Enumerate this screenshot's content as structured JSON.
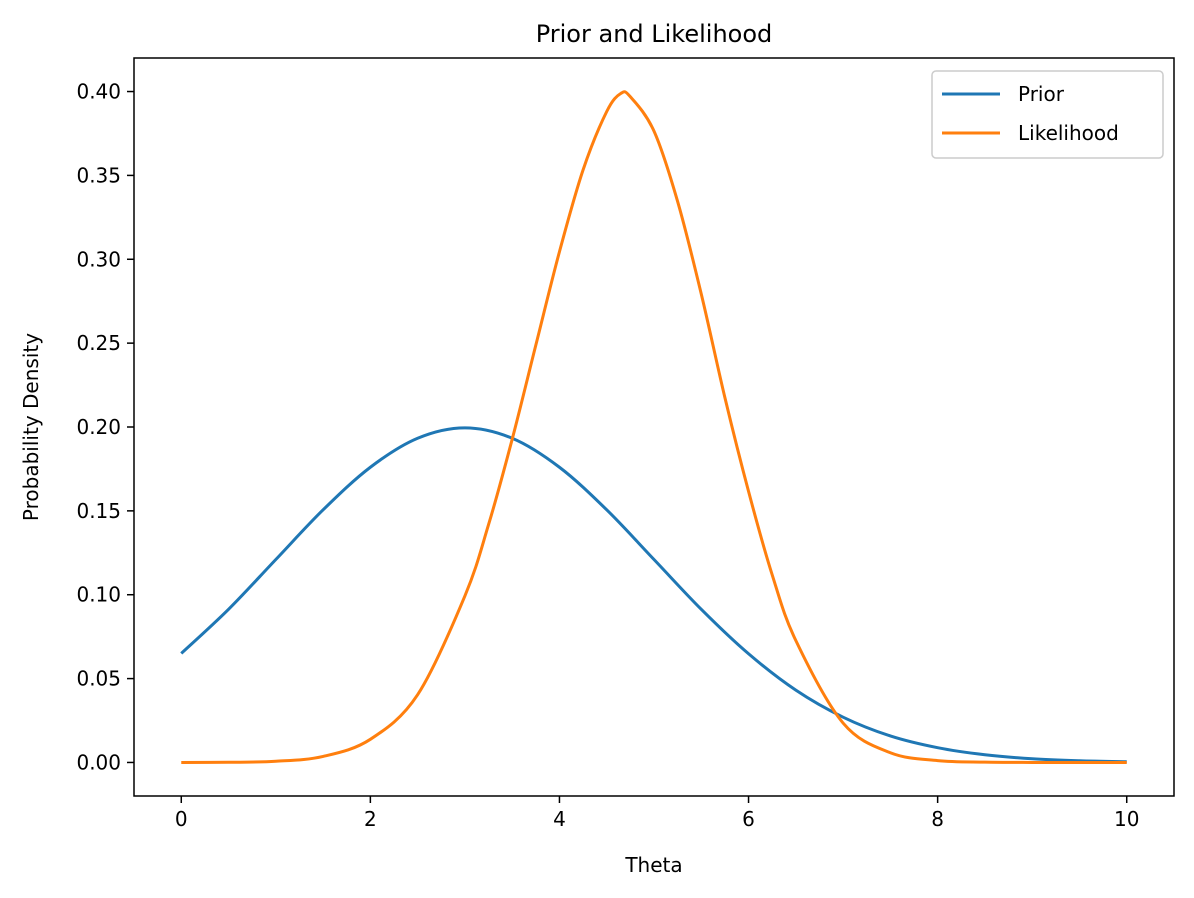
{
  "chart_data": {
    "type": "line",
    "title": "Prior and Likelihood",
    "xlabel": "Theta",
    "ylabel": "Probability Density",
    "xlim": [
      -0.5,
      10.5
    ],
    "ylim": [
      -0.02,
      0.42
    ],
    "xticks": [
      0,
      2,
      4,
      6,
      8,
      10
    ],
    "xtick_labels": [
      "0",
      "2",
      "4",
      "6",
      "8",
      "10"
    ],
    "yticks": [
      0.0,
      0.05,
      0.1,
      0.15,
      0.2,
      0.25,
      0.3,
      0.35,
      0.4
    ],
    "ytick_labels": [
      "0.00",
      "0.05",
      "0.10",
      "0.15",
      "0.20",
      "0.25",
      "0.30",
      "0.35",
      "0.40"
    ],
    "grid": false,
    "legend_position": "top-right",
    "series": [
      {
        "name": "Prior",
        "color": "#1f77b4",
        "x": [
          0,
          0.5,
          1,
          1.5,
          2,
          2.5,
          3,
          3.5,
          4,
          4.5,
          5,
          5.5,
          6,
          6.5,
          7,
          7.5,
          8,
          8.5,
          9,
          9.5,
          10
        ],
        "y": [
          0.065,
          0.0913,
          0.121,
          0.1506,
          0.176,
          0.1933,
          0.1995,
          0.1933,
          0.176,
          0.1506,
          0.121,
          0.0913,
          0.0648,
          0.0431,
          0.027,
          0.0158,
          0.0088,
          0.0046,
          0.0022,
          0.001,
          0.0004
        ]
      },
      {
        "name": "Likelihood",
        "color": "#ff7f0e",
        "x": [
          0,
          0.5,
          1,
          1.5,
          2,
          2.5,
          3,
          3.25,
          3.5,
          3.75,
          4,
          4.25,
          4.5,
          4.65,
          4.75,
          5,
          5.25,
          5.5,
          5.75,
          6,
          6.25,
          6.5,
          7,
          7.5,
          8,
          8.5,
          9,
          9.5,
          10
        ],
        "y": [
          0.0,
          0.0001,
          0.0007,
          0.0036,
          0.0138,
          0.0404,
          0.0993,
          0.1418,
          0.1927,
          0.2488,
          0.3045,
          0.3533,
          0.3881,
          0.3989,
          0.3969,
          0.3764,
          0.3344,
          0.2793,
          0.2175,
          0.1616,
          0.1119,
          0.0727,
          0.0235,
          0.0058,
          0.0011,
          0.0002,
          0.0,
          0.0,
          0.0
        ]
      }
    ]
  }
}
